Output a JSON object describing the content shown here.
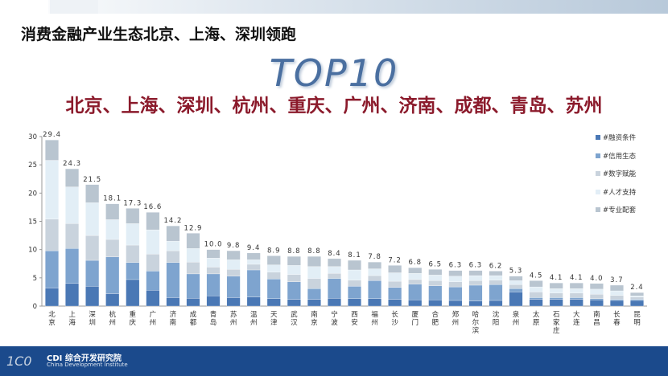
{
  "title": "消费金融产业生态北京、上海、深圳领跑",
  "headline": "TOP10",
  "subheadline": "北京、上海、深圳、杭州、重庆、广州、济南、成都、青岛、苏州",
  "footer": {
    "logo_text": "CDI 综合开发研究院",
    "logo_sub": "China Development Institute",
    "mark": "1C0"
  },
  "colors": {
    "finance": "#4a78b5",
    "credit": "#7ea4cf",
    "digital": "#c9d3dd",
    "talent": "#e2eef6",
    "supporting": "#b9c5d0",
    "bottombar": "#1b4a8c"
  },
  "chart_data": {
    "type": "bar",
    "stacked": true,
    "categories": [
      "北京",
      "上海",
      "深圳",
      "杭州",
      "重庆",
      "广州",
      "济南",
      "成都",
      "青岛",
      "苏州",
      "温州",
      "天津",
      "武汉",
      "南京",
      "宁波",
      "西安",
      "福州",
      "长沙",
      "厦门",
      "合肥",
      "郑州",
      "哈尔滨",
      "沈阳",
      "泉州",
      "太原",
      "石家庄",
      "大连",
      "南昌",
      "长春",
      "昆明"
    ],
    "totals": [
      29.4,
      24.3,
      21.5,
      18.1,
      17.3,
      16.6,
      14.2,
      12.9,
      10.0,
      9.8,
      9.4,
      8.9,
      8.8,
      8.8,
      8.4,
      8.1,
      7.8,
      7.2,
      6.8,
      6.5,
      6.3,
      6.3,
      6.2,
      5.3,
      4.5,
      4.1,
      4.1,
      4.0,
      3.7,
      2.4
    ],
    "total_labels": [
      "29.4",
      "24.3",
      "21.5",
      "18.1",
      "17.3",
      "16.6",
      "14.2",
      "12.9",
      "10.0",
      "9.8",
      "9.4",
      "8.9",
      "8.8",
      "8.8",
      "8.4",
      "8.1",
      "7.8",
      "7.2",
      "6.8",
      "6.5",
      "6.3",
      "6.3",
      "6.2",
      "5.3",
      "4.5",
      "4.1",
      "4.1",
      "4.0",
      "3.7",
      "2.4"
    ],
    "series": [
      {
        "name": "#融资条件",
        "values": [
          3.2,
          4.0,
          3.5,
          2.2,
          4.7,
          2.8,
          1.5,
          1.4,
          1.8,
          1.5,
          1.6,
          1.3,
          1.2,
          1.2,
          1.4,
          1.3,
          1.3,
          1.2,
          1.1,
          1.1,
          1.0,
          0.9,
          1.0,
          2.5,
          1.2,
          1.2,
          1.2,
          1.1,
          1.0,
          1.0
        ]
      },
      {
        "name": "#信用生态",
        "values": [
          6.6,
          6.2,
          4.6,
          6.5,
          3.0,
          3.4,
          6.2,
          4.3,
          3.9,
          3.8,
          4.8,
          3.5,
          3.1,
          1.9,
          3.5,
          2.2,
          3.2,
          2.1,
          2.8,
          2.5,
          2.4,
          2.8,
          2.8,
          0.6,
          0.3,
          0.3,
          0.3,
          0.2,
          0.2,
          0.2
        ]
      },
      {
        "name": "#数字赋能",
        "values": [
          5.6,
          4.4,
          4.4,
          3.1,
          3.1,
          3.0,
          2.1,
          2.1,
          1.2,
          1.2,
          1.0,
          1.2,
          1.3,
          1.8,
          0.9,
          1.1,
          0.9,
          1.1,
          0.8,
          0.9,
          0.9,
          0.8,
          0.8,
          0.7,
          1.0,
          0.8,
          0.8,
          0.8,
          0.7,
          0.4
        ]
      },
      {
        "name": "#人才支持",
        "values": [
          10.4,
          6.5,
          5.8,
          3.5,
          3.8,
          4.3,
          1.7,
          2.4,
          1.6,
          1.7,
          0.8,
          1.3,
          1.6,
          2.1,
          1.2,
          1.8,
          1.2,
          1.5,
          1.1,
          1.0,
          1.0,
          0.9,
          0.8,
          0.7,
          0.9,
          0.8,
          0.8,
          0.9,
          0.8,
          0.2
        ]
      },
      {
        "name": "#专业配套",
        "values": [
          3.6,
          3.2,
          3.2,
          2.8,
          2.7,
          3.1,
          2.7,
          2.7,
          1.5,
          1.6,
          1.2,
          1.6,
          1.6,
          1.8,
          1.4,
          1.7,
          1.2,
          1.3,
          1.0,
          1.0,
          1.0,
          0.9,
          0.8,
          0.8,
          1.1,
          1.0,
          1.0,
          1.0,
          1.0,
          0.6
        ]
      }
    ],
    "ylim": [
      0,
      30
    ],
    "yticks": [
      "0",
      "5",
      "10",
      "15",
      "20",
      "25",
      "30"
    ],
    "xlabel": "",
    "ylabel": "",
    "grid": false,
    "legend_position": "right"
  }
}
